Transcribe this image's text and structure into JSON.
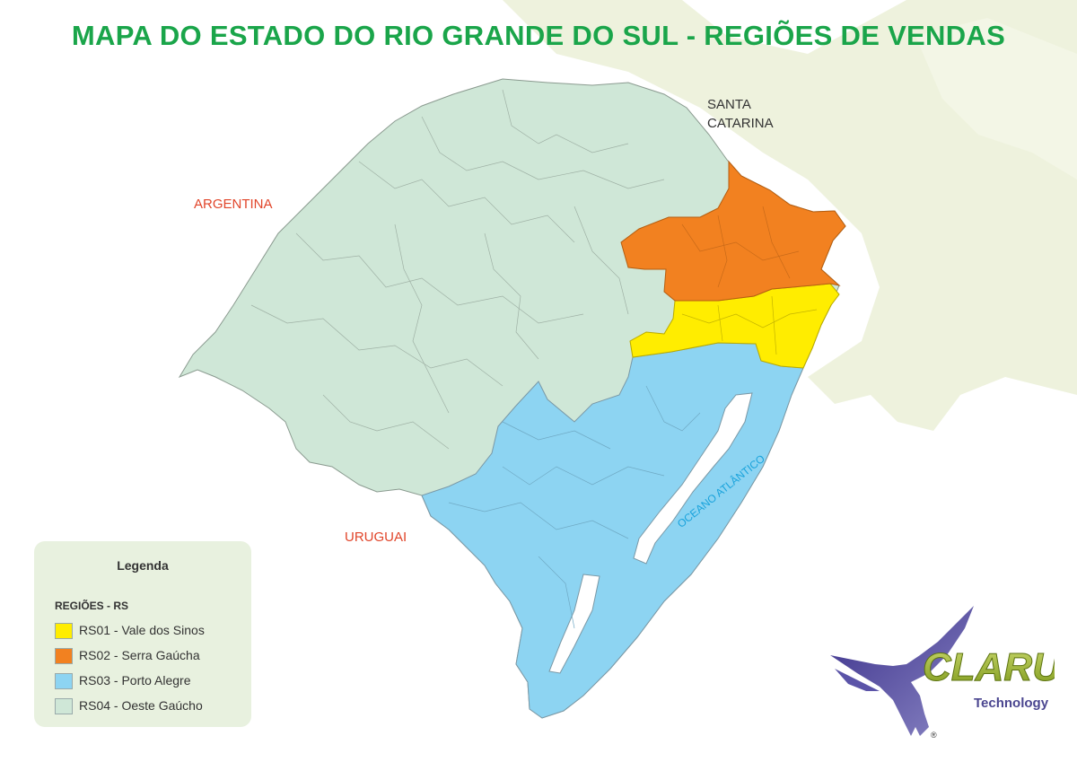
{
  "title": "MAPA DO ESTADO DO RIO GRANDE DO SUL - REGIÕES DE VENDAS",
  "labels": {
    "santa_catarina_1": "SANTA",
    "santa_catarina_2": "CATARINA",
    "argentina": "ARGENTINA",
    "uruguai": "URUGUAI",
    "oceano": "OCEANO ATLÂNTICO"
  },
  "legend": {
    "title": "Legenda",
    "subtitle": "REGIÕES - RS",
    "items": [
      {
        "label": "RS01 - Vale dos Sinos",
        "color": "#ffed00"
      },
      {
        "label": "RS02 - Serra Gaúcha",
        "color": "#f28120"
      },
      {
        "label": "RS03 - Porto Alegre",
        "color": "#8dd4f2"
      },
      {
        "label": "RS04 - Oeste Gaúcho",
        "color": "#cfe7d7"
      }
    ]
  },
  "logo": {
    "brand": "CLARUS",
    "sub": "Technology",
    "mark": "®"
  },
  "colors": {
    "title": "#1aa54a",
    "country": "#e1452a",
    "ocean_text": "#1aa3dc",
    "region_border": "#8a9a8f",
    "watermark": "#eef2dd"
  }
}
